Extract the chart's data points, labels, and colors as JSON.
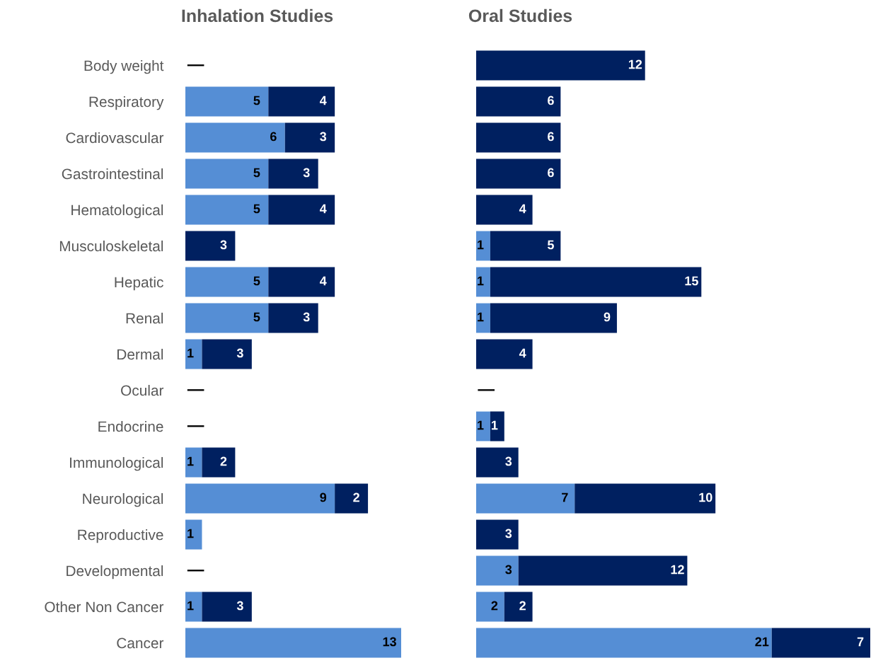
{
  "chart_data": [
    {
      "type": "bar",
      "orientation": "horizontal",
      "stacked": true,
      "title": "Inhalation Studies",
      "tick_labels": "y",
      "grid": false,
      "legend": false,
      "categories": [
        "Body weight",
        "Respiratory",
        "Cardiovascular",
        "Gastrointestinal",
        "Hematological",
        "Musculoskeletal",
        "Hepatic",
        "Renal",
        "Dermal",
        "Ocular",
        "Endocrine",
        "Immunological",
        "Neurological",
        "Reproductive",
        "Developmental",
        "Other Non Cancer",
        "Cancer"
      ],
      "series": [
        {
          "color": "#558ed5",
          "values": [
            0,
            5,
            6,
            5,
            5,
            null,
            5,
            5,
            1,
            0,
            0,
            1,
            9,
            1,
            0,
            1,
            13
          ],
          "value_labels": [
            "—",
            "5",
            "6",
            "5",
            "5",
            null,
            "5",
            "5",
            "1",
            "—",
            "—",
            "1",
            "9",
            "1",
            "—",
            "1",
            "13"
          ]
        },
        {
          "color": "#002060",
          "values": [
            null,
            4,
            3,
            3,
            4,
            3,
            4,
            3,
            3,
            null,
            null,
            2,
            2,
            null,
            null,
            3,
            null
          ],
          "value_labels": [
            null,
            "4",
            "3",
            "3",
            "4",
            "3",
            "4",
            "3",
            "3",
            null,
            null,
            "2",
            "2",
            null,
            null,
            "3",
            null
          ]
        }
      ]
    },
    {
      "type": "bar",
      "orientation": "horizontal",
      "stacked": true,
      "title": "Oral Studies",
      "grid": false,
      "legend": false,
      "categories": [
        null,
        null,
        null,
        null,
        null,
        null,
        null,
        null,
        null,
        null,
        null,
        null,
        null,
        null,
        null,
        null,
        null
      ],
      "series": [
        {
          "color": "#558ed5",
          "values": [
            null,
            null,
            null,
            null,
            null,
            1,
            1,
            1,
            null,
            0,
            1,
            null,
            7,
            null,
            3,
            2,
            21
          ],
          "value_labels": [
            null,
            null,
            null,
            null,
            null,
            "1",
            "1",
            "1",
            null,
            "—",
            "1",
            null,
            "7",
            null,
            "3",
            "2",
            "21"
          ]
        },
        {
          "color": "#002060",
          "values": [
            12,
            6,
            6,
            6,
            4,
            5,
            15,
            9,
            4,
            null,
            1,
            3,
            10,
            3,
            12,
            2,
            7
          ],
          "value_labels": [
            "12",
            "6",
            "6",
            "6",
            "4",
            "5",
            "15",
            "9",
            "4",
            null,
            "1",
            "3",
            "10",
            "3",
            "12",
            "2",
            "7"
          ]
        }
      ]
    }
  ]
}
